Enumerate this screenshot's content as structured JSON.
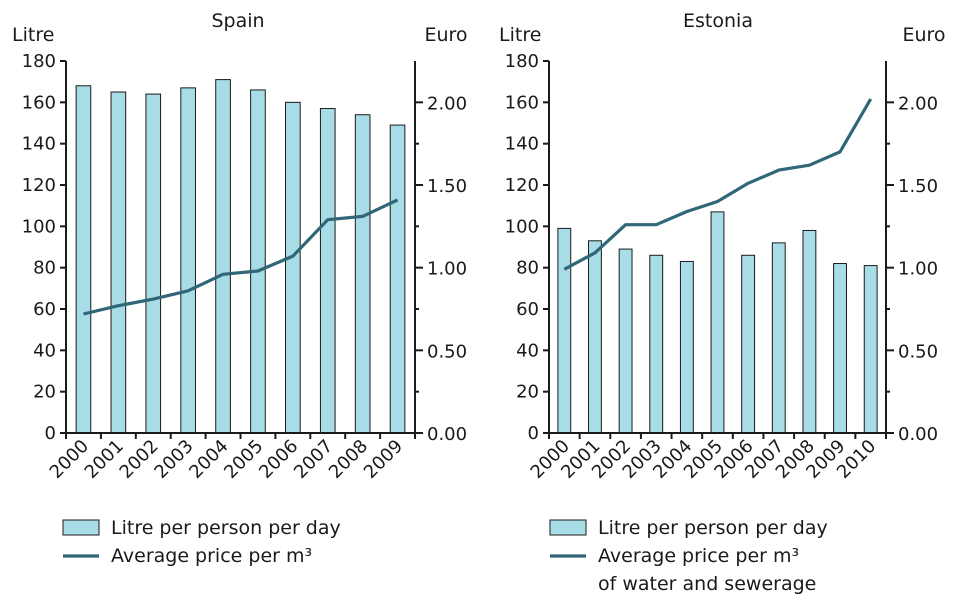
{
  "chart_data": [
    {
      "type": "bar",
      "title": "Spain",
      "ylabel": "Litre",
      "y2label": "Euro",
      "ylim": [
        0,
        180
      ],
      "y2lim": [
        0,
        2.25
      ],
      "yticks": [
        "0",
        "20",
        "40",
        "60",
        "80",
        "100",
        "120",
        "140",
        "160",
        "180"
      ],
      "y2ticks": [
        "0.00",
        "0.50",
        "1.00",
        "1.50",
        "2.00"
      ],
      "categories": [
        "2000",
        "2001",
        "2002",
        "2003",
        "2004",
        "2005",
        "2006",
        "2007",
        "2008",
        "2009"
      ],
      "series": [
        {
          "name": "Litre per person per day",
          "type": "bar",
          "axis": "left",
          "values": [
            168,
            165,
            164,
            167,
            171,
            166,
            160,
            157,
            154,
            149
          ]
        },
        {
          "name": "Average price per m³",
          "type": "line",
          "axis": "right",
          "values": [
            0.72,
            0.77,
            0.81,
            0.86,
            0.96,
            0.98,
            1.07,
            1.29,
            1.31,
            1.41
          ]
        }
      ],
      "legend": [
        "Litre per person per day",
        "Average price per m³"
      ]
    },
    {
      "type": "bar",
      "title": "Estonia",
      "ylabel": "Litre",
      "y2label": "Euro",
      "ylim": [
        0,
        180
      ],
      "y2lim": [
        0,
        2.25
      ],
      "yticks": [
        "0",
        "20",
        "40",
        "60",
        "80",
        "100",
        "120",
        "140",
        "160",
        "180"
      ],
      "y2ticks": [
        "0.00",
        "0.50",
        "1.00",
        "1.50",
        "2.00"
      ],
      "categories": [
        "2000",
        "2001",
        "2002",
        "2003",
        "2004",
        "2005",
        "2006",
        "2007",
        "2008",
        "2009",
        "2010"
      ],
      "series": [
        {
          "name": "Litre per person per day",
          "type": "bar",
          "axis": "left",
          "values": [
            99,
            93,
            89,
            86,
            83,
            107,
            86,
            92,
            98,
            82,
            81
          ]
        },
        {
          "name": "Average price per m³ of water and sewerage",
          "type": "line",
          "axis": "right",
          "values": [
            0.99,
            1.09,
            1.26,
            1.26,
            1.34,
            1.4,
            1.51,
            1.59,
            1.62,
            1.7,
            2.02
          ]
        }
      ],
      "legend": [
        "Litre per person per day",
        "Average price per m³",
        "of water and sewerage"
      ]
    }
  ]
}
